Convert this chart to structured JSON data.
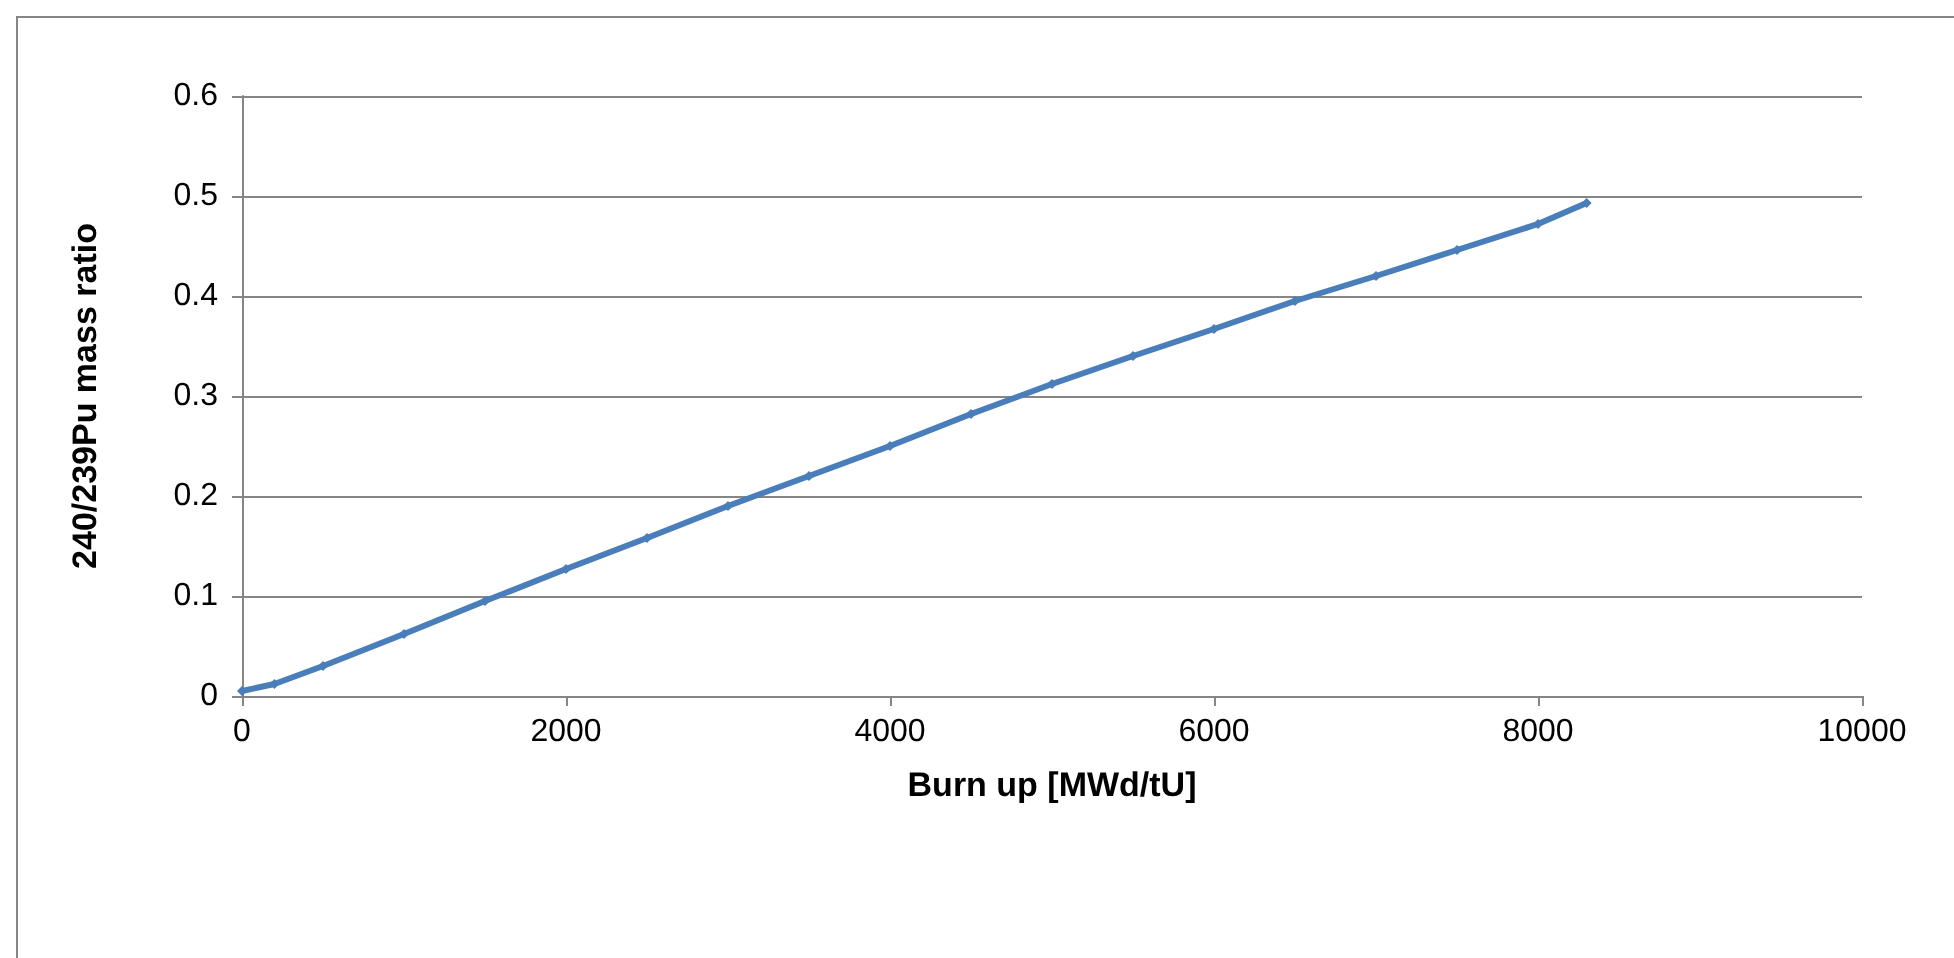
{
  "chart_data": {
    "type": "line",
    "xlabel": "Burn up [MWd/tU]",
    "ylabel": "240/239Pu mass ratio",
    "series": [
      {
        "color": "#4a7ebb",
        "x": [
          0,
          200,
          500,
          1000,
          1500,
          2000,
          2500,
          3000,
          3500,
          4000,
          4500,
          5000,
          5500,
          6000,
          6500,
          7000,
          7500,
          8000,
          8300
        ],
        "values": [
          0.005,
          0.012,
          0.03,
          0.062,
          0.095,
          0.127,
          0.158,
          0.19,
          0.22,
          0.25,
          0.282,
          0.312,
          0.34,
          0.367,
          0.395,
          0.42,
          0.446,
          0.472,
          0.493
        ]
      }
    ],
    "xlim": [
      0,
      10000
    ],
    "xticks": [
      0,
      2000,
      4000,
      6000,
      8000,
      10000
    ],
    "ylim": [
      0,
      0.6
    ],
    "yticks": [
      0,
      0.1,
      0.2,
      0.3,
      0.4,
      0.5,
      0.6
    ],
    "grid": "y",
    "marker": "diamond",
    "line_style": "solid"
  }
}
